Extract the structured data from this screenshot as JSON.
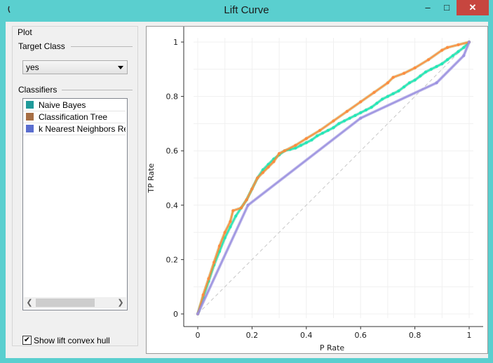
{
  "window": {
    "title": "Lift Curve"
  },
  "panel": {
    "group_title": "Plot",
    "target_class_label": "Target Class",
    "target_class_value": "yes",
    "classifiers_label": "Classifiers",
    "classifiers": [
      {
        "name": "Naive Bayes",
        "color": "#1f9a9a"
      },
      {
        "name": "Classification Tree",
        "color": "#a66e44"
      },
      {
        "name": "k Nearest Neighbors Re",
        "color": "#5a6ecf"
      }
    ],
    "show_hull_label": "Show lift convex hull",
    "show_hull_checked": true
  },
  "chart_data": {
    "type": "line",
    "xlabel": "P Rate",
    "ylabel": "TP Rate",
    "xlim": [
      0,
      1
    ],
    "ylim": [
      0,
      1
    ],
    "xticks": [
      "0",
      "0.2",
      "0.4",
      "0.6",
      "0.8",
      "1"
    ],
    "yticks": [
      "0",
      "0.2",
      "0.4",
      "0.6",
      "0.8",
      "1"
    ],
    "grid": true,
    "diagonal": {
      "x": [
        0,
        1
      ],
      "y": [
        0,
        1
      ],
      "color": "#c8c8c8"
    },
    "series": [
      {
        "color": "#1de9b6",
        "hull_color": "#2fc89a",
        "x": [
          0,
          0.02,
          0.04,
          0.06,
          0.08,
          0.1,
          0.12,
          0.14,
          0.16,
          0.18,
          0.2,
          0.22,
          0.24,
          0.26,
          0.28,
          0.3,
          0.32,
          0.34,
          0.36,
          0.38,
          0.4,
          0.42,
          0.44,
          0.46,
          0.48,
          0.5,
          0.52,
          0.54,
          0.56,
          0.58,
          0.6,
          0.62,
          0.64,
          0.66,
          0.68,
          0.7,
          0.72,
          0.74,
          0.76,
          0.78,
          0.8,
          0.82,
          0.84,
          0.86,
          0.88,
          0.9,
          0.92,
          0.94,
          0.96,
          0.98,
          1
        ],
        "y": [
          0,
          0.06,
          0.12,
          0.18,
          0.23,
          0.28,
          0.32,
          0.36,
          0.39,
          0.42,
          0.46,
          0.5,
          0.53,
          0.55,
          0.57,
          0.585,
          0.6,
          0.605,
          0.61,
          0.62,
          0.63,
          0.64,
          0.655,
          0.665,
          0.675,
          0.685,
          0.7,
          0.71,
          0.72,
          0.73,
          0.74,
          0.75,
          0.76,
          0.775,
          0.79,
          0.8,
          0.81,
          0.82,
          0.835,
          0.85,
          0.86,
          0.875,
          0.89,
          0.9,
          0.91,
          0.92,
          0.935,
          0.95,
          0.965,
          0.98,
          1
        ]
      },
      {
        "color": "#ff8a3d",
        "hull_color": "#c99f3a",
        "x": [
          0,
          0.02,
          0.04,
          0.06,
          0.08,
          0.1,
          0.12,
          0.13,
          0.16,
          0.18,
          0.2,
          0.22,
          0.24,
          0.26,
          0.28,
          0.3,
          0.32,
          0.36,
          0.4,
          0.45,
          0.5,
          0.55,
          0.6,
          0.65,
          0.7,
          0.72,
          0.76,
          0.8,
          0.85,
          0.9,
          0.92,
          0.96,
          1
        ],
        "y": [
          0,
          0.07,
          0.13,
          0.19,
          0.25,
          0.3,
          0.34,
          0.38,
          0.39,
          0.42,
          0.46,
          0.5,
          0.52,
          0.54,
          0.56,
          0.59,
          0.6,
          0.62,
          0.645,
          0.675,
          0.71,
          0.745,
          0.78,
          0.815,
          0.85,
          0.87,
          0.885,
          0.905,
          0.935,
          0.97,
          0.98,
          0.99,
          1
        ]
      },
      {
        "color": "#9b91e0",
        "hull_color": "#8a80d8",
        "x": [
          0,
          0.185,
          0.6,
          0.88,
          0.98,
          1
        ],
        "y": [
          0,
          0.4,
          0.72,
          0.85,
          0.95,
          1
        ]
      }
    ]
  }
}
